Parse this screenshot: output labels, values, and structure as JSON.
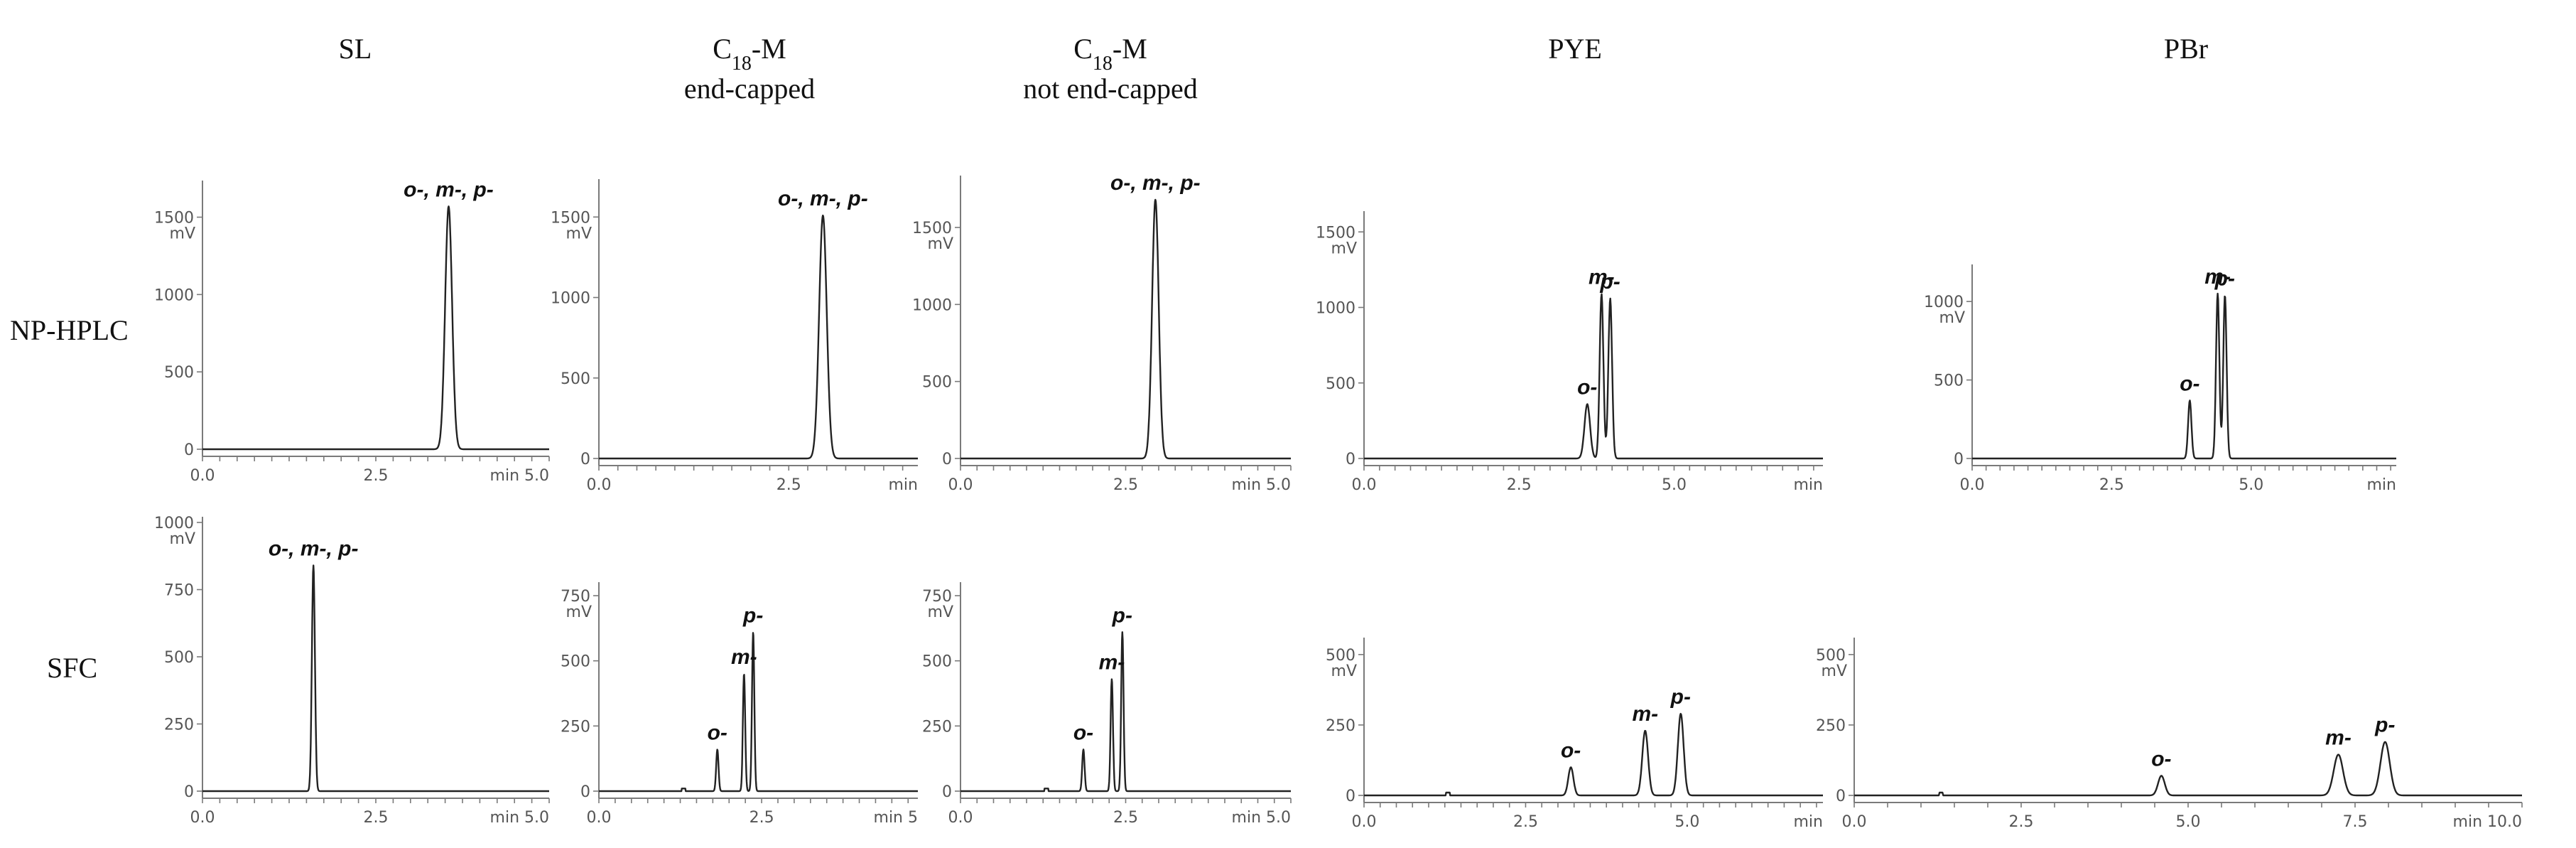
{
  "figure": {
    "columns": [
      {
        "id": "sl",
        "line1": "SL",
        "line2": "",
        "line3": ""
      },
      {
        "id": "c18ec",
        "line1": "C",
        "sub": "18",
        "line1b": "-M",
        "line2": "end-capped"
      },
      {
        "id": "c18nec",
        "line1": "C",
        "sub": "18",
        "line1b": "-M",
        "line2": "not end-capped"
      },
      {
        "id": "pye",
        "line1": "PYE",
        "line2": "",
        "line3": ""
      },
      {
        "id": "pbr",
        "line1": "PBr",
        "line2": "",
        "line3": ""
      }
    ],
    "rows": {
      "top": "NP-HPLC",
      "bottom": "SFC"
    }
  },
  "chart_data": [
    {
      "type": "line",
      "panel": "sl-nphplc",
      "row": "NP-HPLC",
      "column": "SL",
      "ylabel": "mV",
      "ylim": [
        0,
        1700
      ],
      "yticks": [
        0,
        500,
        1000,
        1500
      ],
      "xlim": [
        0,
        5
      ],
      "xticks": [
        "0.0",
        "2.5",
        "min 5.0"
      ],
      "peaks": [
        {
          "label": "o-, m-, p-",
          "x": 3.55,
          "y": 1570,
          "w": 0.05
        }
      ]
    },
    {
      "type": "line",
      "panel": "c18ec-nphplc",
      "row": "NP-HPLC",
      "column": "C18-M end-capped",
      "ylabel": "mV",
      "ylim": [
        0,
        1700
      ],
      "yticks": [
        0,
        500,
        1000,
        1500
      ],
      "xlim": [
        0,
        4.2
      ],
      "xticks": [
        "0.0",
        "2.5",
        "min"
      ],
      "peaks": [
        {
          "label": "o-, m-, p-",
          "x": 2.95,
          "y": 1510,
          "w": 0.05
        }
      ]
    },
    {
      "type": "line",
      "panel": "c18nec-nphplc",
      "row": "NP-HPLC",
      "column": "C18-M not end-capped",
      "ylabel": "mV",
      "ylim": [
        0,
        1800
      ],
      "yticks": [
        0,
        500,
        1000,
        1500
      ],
      "xlim": [
        0,
        5
      ],
      "xticks": [
        "0.0",
        "2.5",
        "min 5.0"
      ],
      "peaks": [
        {
          "label": "o-, m-, p-",
          "x": 2.95,
          "y": 1680,
          "w": 0.05
        }
      ]
    },
    {
      "type": "line",
      "panel": "pye-nphplc",
      "row": "NP-HPLC",
      "column": "PYE",
      "ylabel": "mV",
      "ylim": [
        0,
        1600
      ],
      "yticks": [
        0,
        500,
        1000,
        1500
      ],
      "xlim": [
        0,
        7.4
      ],
      "xticks": [
        "0.0",
        "2.5",
        "5.0",
        "min"
      ],
      "peaks": [
        {
          "label": "o-",
          "x": 3.6,
          "y": 360,
          "w": 0.045
        },
        {
          "label": "m-",
          "x": 3.83,
          "y": 1090,
          "w": 0.03
        },
        {
          "label": "p-",
          "x": 3.97,
          "y": 1060,
          "w": 0.03
        }
      ]
    },
    {
      "type": "line",
      "panel": "pbr-nphplc",
      "row": "NP-HPLC",
      "column": "PBr",
      "ylabel": "mV",
      "ylim": [
        0,
        1200
      ],
      "yticks": [
        0,
        500,
        1000
      ],
      "xlim": [
        0,
        7.6
      ],
      "xticks": [
        "0.0",
        "2.5",
        "5.0",
        "min"
      ],
      "peaks": [
        {
          "label": "o-",
          "x": 3.9,
          "y": 370,
          "w": 0.03
        },
        {
          "label": "m-",
          "x": 4.4,
          "y": 1050,
          "w": 0.03
        },
        {
          "label": "p-",
          "x": 4.53,
          "y": 1040,
          "w": 0.03
        }
      ]
    },
    {
      "type": "line",
      "panel": "sl-sfc",
      "row": "SFC",
      "column": "SL",
      "ylabel": "mV",
      "ylim": [
        0,
        1000
      ],
      "yticks": [
        0,
        250,
        500,
        750,
        1000
      ],
      "xlim": [
        0,
        5
      ],
      "xticks": [
        "0.0",
        "2.5",
        "min 5.0"
      ],
      "peaks": [
        {
          "label": "o-, m-, p-",
          "x": 1.6,
          "y": 840,
          "w": 0.022
        }
      ]
    },
    {
      "type": "line",
      "panel": "c18ec-sfc",
      "row": "SFC",
      "column": "C18-M end-capped",
      "ylabel": "mV",
      "ylim": [
        0,
        780
      ],
      "yticks": [
        0,
        250,
        500,
        750
      ],
      "xlim": [
        0,
        4.9
      ],
      "xticks": [
        "0.0",
        "2.5",
        "min 5"
      ],
      "peaks": [
        {
          "label": "o-",
          "x": 1.82,
          "y": 160,
          "w": 0.018
        },
        {
          "label": "m-",
          "x": 2.23,
          "y": 450,
          "w": 0.018
        },
        {
          "label": "p-",
          "x": 2.37,
          "y": 610,
          "w": 0.018
        }
      ]
    },
    {
      "type": "line",
      "panel": "c18nec-sfc",
      "row": "SFC",
      "column": "C18-M not end-capped",
      "ylabel": "mV",
      "ylim": [
        0,
        780
      ],
      "yticks": [
        0,
        250,
        500,
        750
      ],
      "xlim": [
        0,
        5
      ],
      "xticks": [
        "0.0",
        "2.5",
        "min 5.0"
      ],
      "peaks": [
        {
          "label": "o-",
          "x": 1.86,
          "y": 160,
          "w": 0.018
        },
        {
          "label": "m-",
          "x": 2.29,
          "y": 430,
          "w": 0.018
        },
        {
          "label": "p-",
          "x": 2.45,
          "y": 610,
          "w": 0.018
        }
      ]
    },
    {
      "type": "line",
      "panel": "pye-sfc",
      "row": "SFC",
      "column": "PYE",
      "ylabel": "mV",
      "ylim": [
        0,
        540
      ],
      "yticks": [
        0,
        250,
        500
      ],
      "xlim": [
        0,
        7.1
      ],
      "xticks": [
        "0.0",
        "2.5",
        "5.0",
        "min"
      ],
      "peaks": [
        {
          "label": "o-",
          "x": 3.2,
          "y": 100,
          "w": 0.04
        },
        {
          "label": "m-",
          "x": 4.35,
          "y": 230,
          "w": 0.045
        },
        {
          "label": "p-",
          "x": 4.9,
          "y": 290,
          "w": 0.045
        }
      ]
    },
    {
      "type": "line",
      "panel": "pbr-sfc",
      "row": "SFC",
      "column": "PBr",
      "ylabel": "mV",
      "ylim": [
        0,
        540
      ],
      "yticks": [
        0,
        250,
        500
      ],
      "xlim": [
        0,
        10
      ],
      "xticks": [
        "0.0",
        "2.5",
        "5.0",
        "7.5",
        "min 10.0"
      ],
      "peaks": [
        {
          "label": "o-",
          "x": 4.6,
          "y": 70,
          "w": 0.05
        },
        {
          "label": "m-",
          "x": 7.25,
          "y": 145,
          "w": 0.07
        },
        {
          "label": "p-",
          "x": 7.95,
          "y": 190,
          "w": 0.07
        }
      ]
    }
  ]
}
